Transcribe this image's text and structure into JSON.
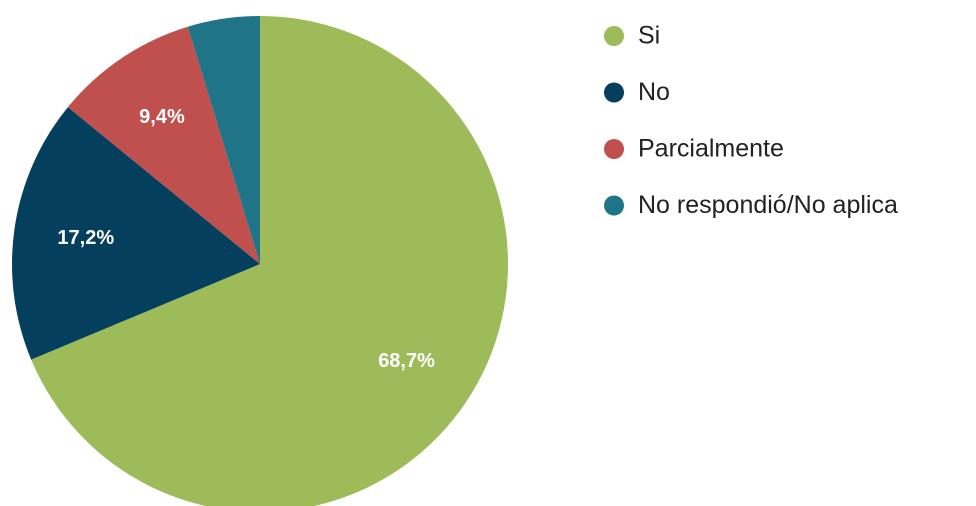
{
  "chart_data": {
    "type": "pie",
    "categories": [
      "Si",
      "No",
      "Parcialmente",
      "No respondió/No aplica"
    ],
    "values": [
      68.7,
      17.2,
      9.4,
      4.7
    ],
    "value_labels": [
      "68,7%",
      "17,2%",
      "9,4%",
      null
    ],
    "colors": [
      "#9dbb59",
      "#043f5e",
      "#c0504e",
      "#1f7487"
    ],
    "legend": "right"
  }
}
